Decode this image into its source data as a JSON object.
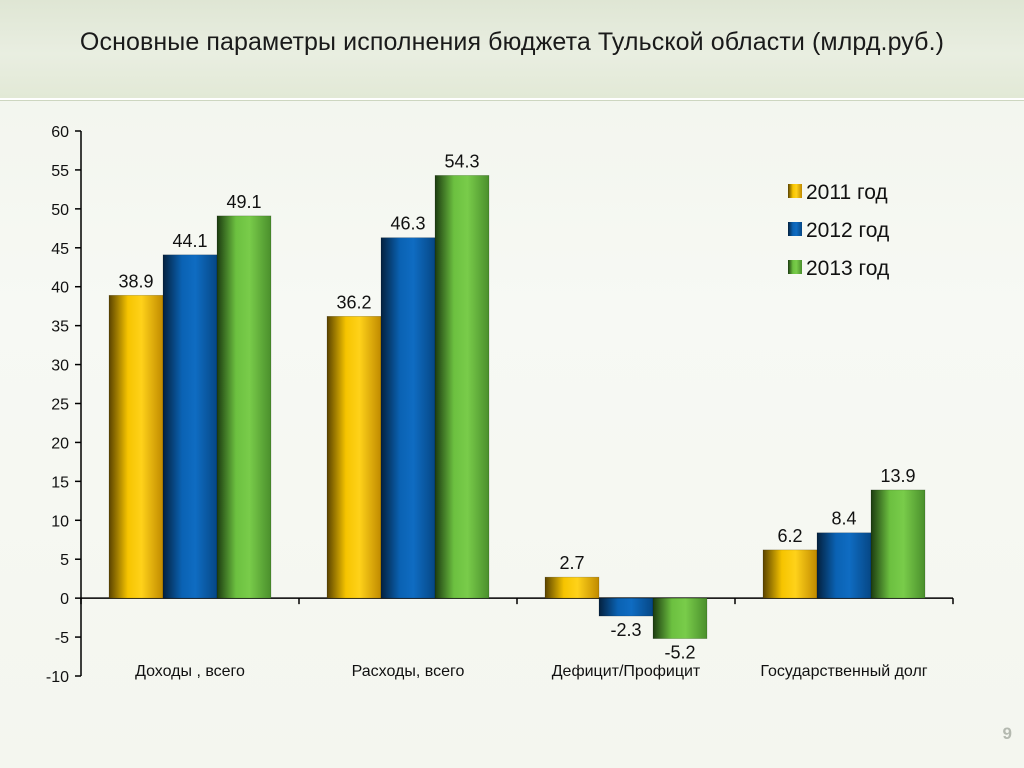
{
  "slide": {
    "title": "Основные параметры исполнения бюджета Тульской области (млрд.руб.)",
    "page_number": "9"
  },
  "colors": {
    "series": [
      "#e8b000",
      "#0a5aa8",
      "#5fb33a"
    ],
    "axis": "#000000",
    "text": "#111111"
  },
  "chart_data": {
    "type": "bar",
    "title": "",
    "categories": [
      "Доходы , всего",
      "Расходы, всего",
      "Дефицит/Профицит",
      "Государственный долг"
    ],
    "series": [
      {
        "name": "2011 год",
        "values": [
          38.9,
          36.2,
          2.7,
          6.2
        ]
      },
      {
        "name": "2012 год",
        "values": [
          44.1,
          46.3,
          -2.3,
          8.4
        ]
      },
      {
        "name": "2013 год",
        "values": [
          49.1,
          54.3,
          -5.2,
          13.9
        ]
      }
    ],
    "ylim": [
      -10,
      60
    ],
    "yticks": [
      "-10",
      "-5",
      "0",
      "5",
      "10",
      "15",
      "20",
      "25",
      "30",
      "35",
      "40",
      "45",
      "50",
      "55",
      "60"
    ],
    "grid": false,
    "legend": "top-right",
    "xlabel": "",
    "ylabel": ""
  }
}
